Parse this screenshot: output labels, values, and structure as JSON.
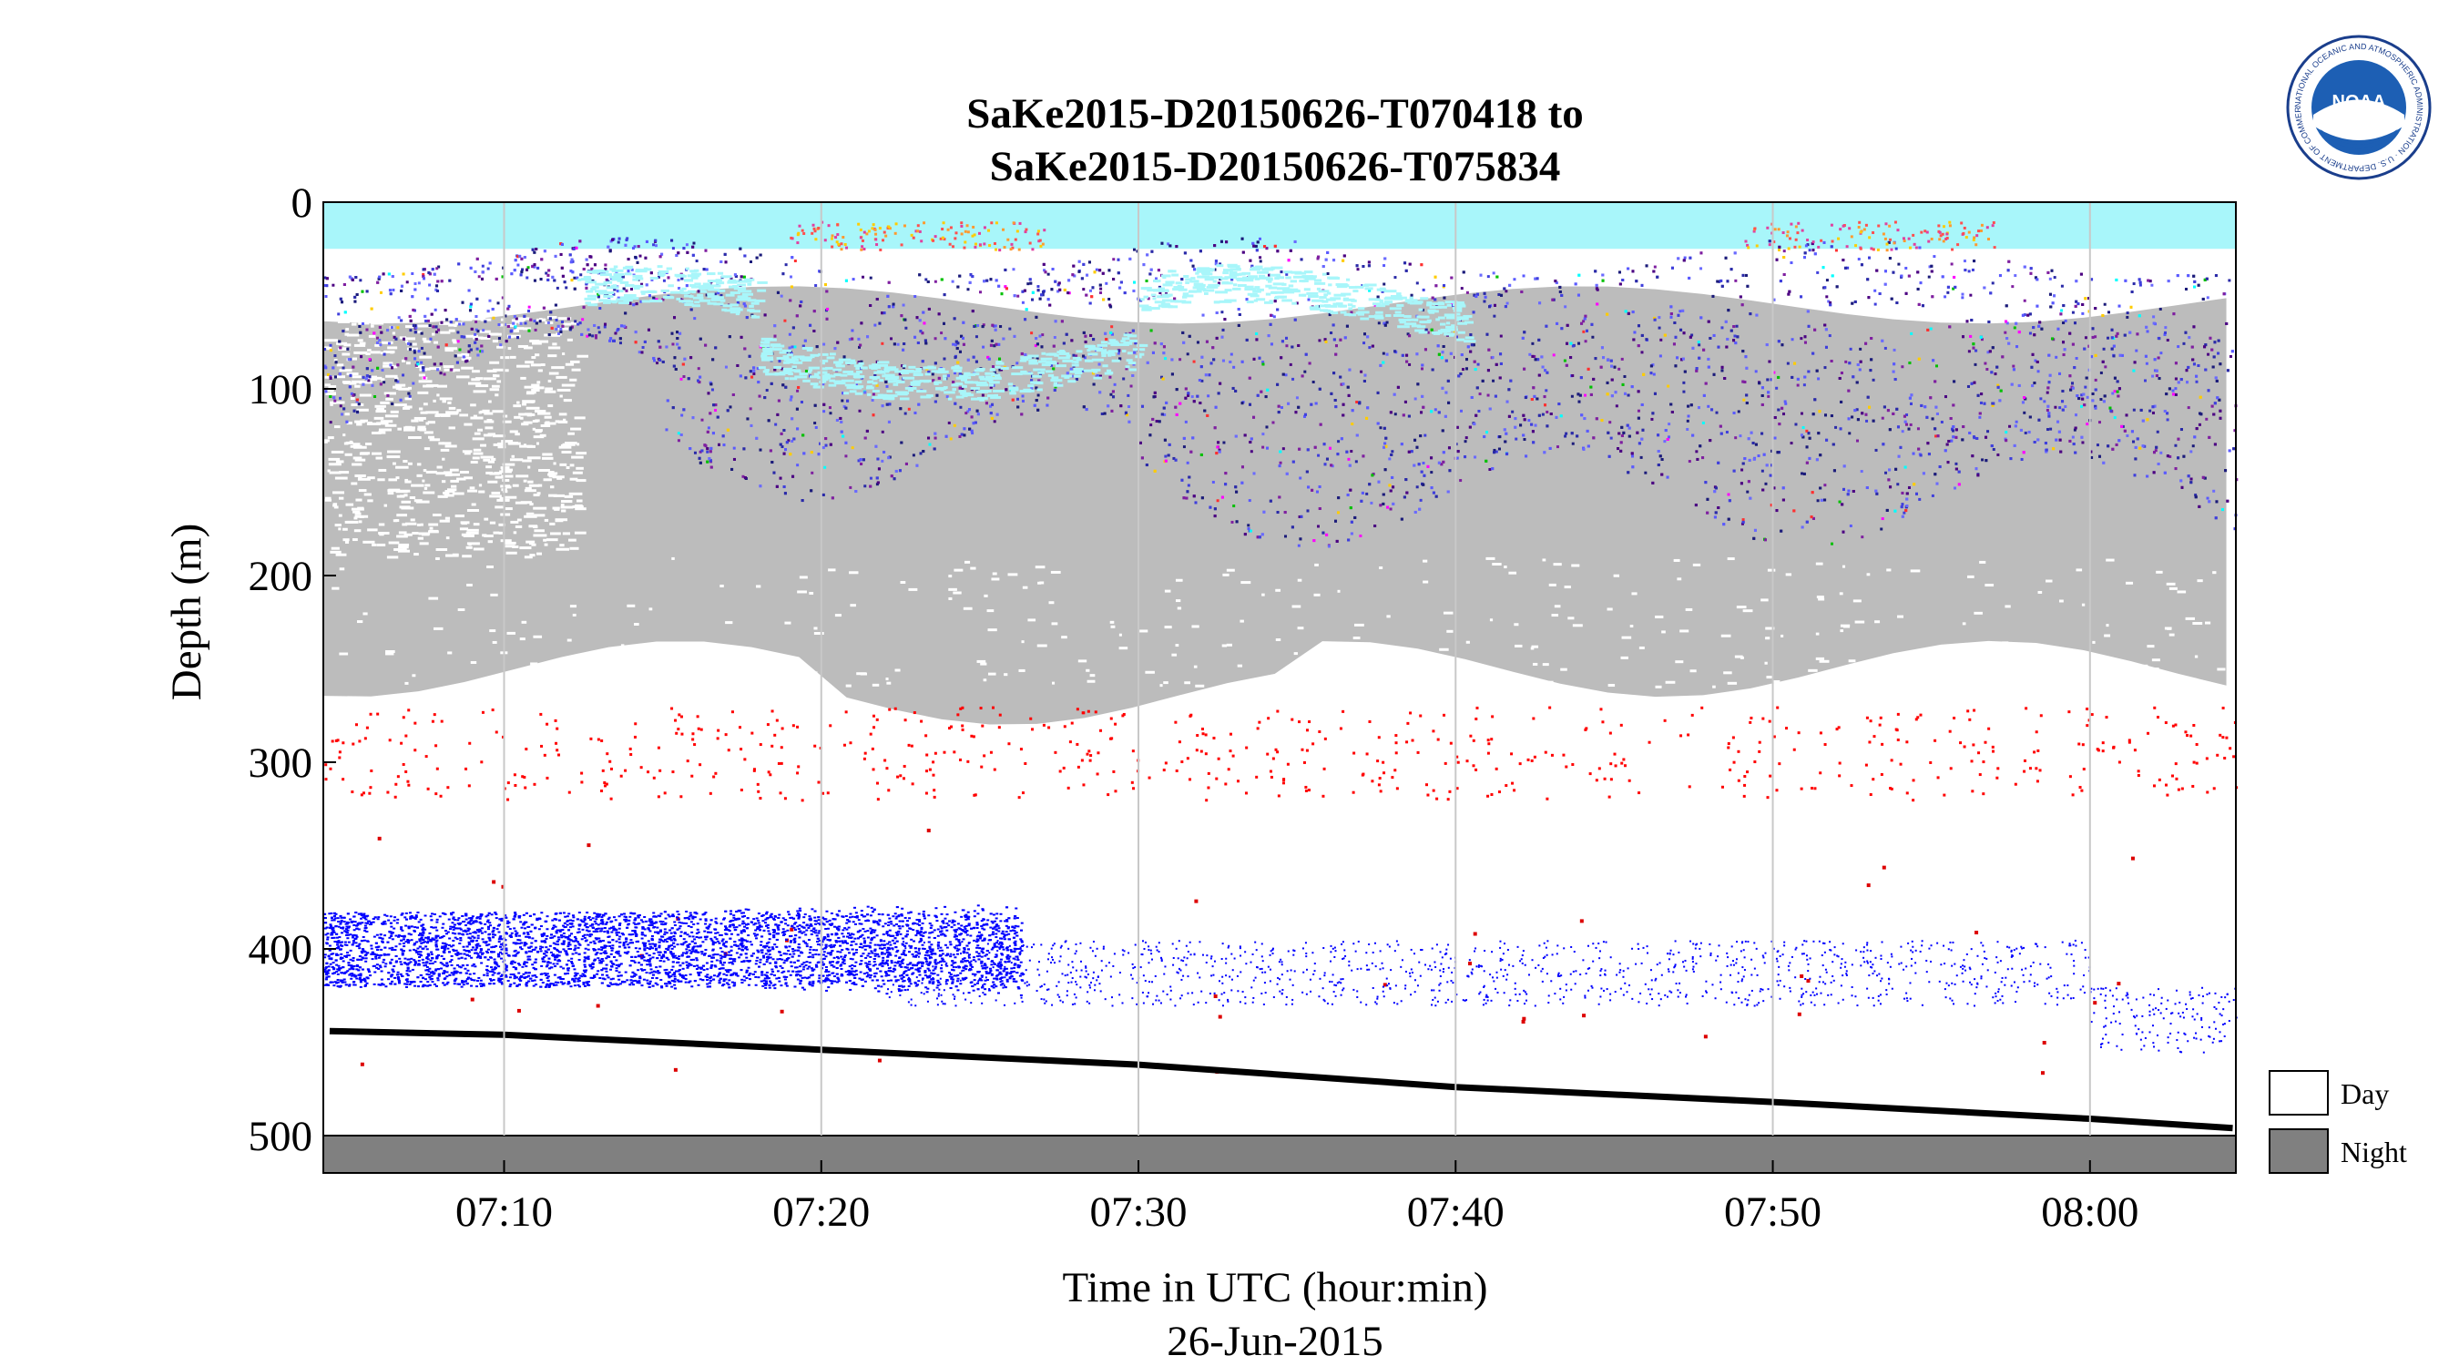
{
  "logo": {
    "text": "NOAA",
    "ring_text": "NATIONAL OCEANIC AND ATMOSPHERIC ADMINISTRATION · U.S. DEPARTMENT OF COMMERCE"
  },
  "chart_data": {
    "type": "heatmap",
    "title": [
      "SaKe2015-D20150626-T070418 to",
      "SaKe2015-D20150626-T075834"
    ],
    "xlabel": "Time in UTC (hour:min)",
    "xlabel2": "26-Jun-2015",
    "ylabel": "Depth (m)",
    "x_ticks": [
      "07:10",
      "07:20",
      "07:30",
      "07:40",
      "07:50",
      "08:00"
    ],
    "x_tick_minutes": [
      10,
      20,
      30,
      40,
      50,
      60
    ],
    "xlim_minutes_after_0700": [
      4.3,
      64.6
    ],
    "y_ticks": [
      0,
      100,
      200,
      300,
      400,
      500
    ],
    "ylim": [
      0,
      520
    ],
    "y_reversed": true,
    "grid": "vertical",
    "legend": {
      "position": "right",
      "entries": [
        {
          "label": "Day",
          "color": "#ffffff"
        },
        {
          "label": "Night",
          "color": "#808080"
        }
      ]
    },
    "day_night_bar": {
      "depth_range": [
        500,
        520
      ],
      "state": "Night",
      "color": "#808080"
    },
    "bottom_line": {
      "minutes": [
        4.5,
        10,
        20,
        30,
        40,
        50,
        60,
        64.5
      ],
      "depth": [
        444,
        446,
        454,
        462,
        474,
        482,
        491,
        496
      ]
    },
    "layers": [
      {
        "name": "surface",
        "color": "#a8f6fa",
        "depth_top": 0,
        "depth_bottom": 25
      },
      {
        "name": "upper scattering layer",
        "colors": [
          "#3f3fdc",
          "#1b1b7a",
          "#6a6aff",
          "#7f1fa0"
        ],
        "depth_top_range": [
          25,
          50
        ],
        "depth_bottom_range": [
          100,
          190
        ]
      },
      {
        "name": "diffuse layer",
        "color": "#bcbcbc",
        "depth_top": 60,
        "depth_bottom_range": [
          240,
          280
        ]
      },
      {
        "name": "scattered red",
        "color": "#ff0000",
        "depth_range": [
          270,
          320
        ]
      },
      {
        "name": "deep blue layer",
        "color": "#0000ff",
        "depth_range": [
          370,
          440
        ]
      }
    ]
  }
}
